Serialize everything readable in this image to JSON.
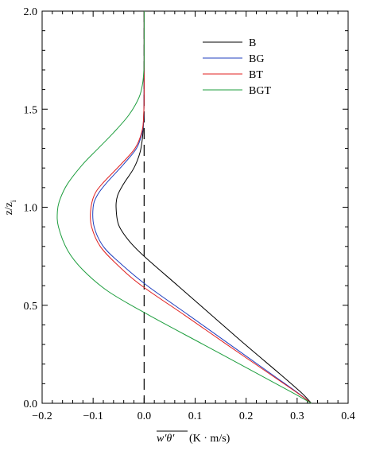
{
  "chart_data": {
    "type": "line",
    "xlim": [
      -0.2,
      0.4
    ],
    "ylim": [
      0.0,
      2.0
    ],
    "x_ticks": [
      -0.2,
      -0.1,
      0.0,
      0.1,
      0.2,
      0.3,
      0.4
    ],
    "x_tick_labels": [
      "−0.2",
      "−0.1",
      "0.0",
      "0.1",
      "0.2",
      "0.3",
      "0.4"
    ],
    "y_ticks": [
      0.0,
      0.5,
      1.0,
      1.5,
      2.0
    ],
    "y_tick_labels": [
      "0.0",
      "0.5",
      "1.0",
      "1.5",
      "2.0"
    ],
    "xlabel_symbol": "w′θ′",
    "xlabel_unit": "(K · m/s)",
    "ylabel_main": "z/z",
    "ylabel_sub": "i",
    "legend_position": "top-right",
    "zero_line": "dashed",
    "series": [
      {
        "name": "B",
        "color": "#000000",
        "points": [
          [
            0.328,
            0.0
          ],
          [
            0.31,
            0.05
          ],
          [
            0.266,
            0.15
          ],
          [
            0.198,
            0.3
          ],
          [
            0.132,
            0.45
          ],
          [
            0.066,
            0.6
          ],
          [
            0.0,
            0.75
          ],
          [
            -0.03,
            0.83
          ],
          [
            -0.05,
            0.91
          ],
          [
            -0.055,
            1.0
          ],
          [
            -0.052,
            1.06
          ],
          [
            -0.04,
            1.12
          ],
          [
            -0.02,
            1.2
          ],
          [
            -0.008,
            1.28
          ],
          [
            -0.003,
            1.36
          ],
          [
            -0.001,
            1.45
          ],
          [
            0.0,
            1.6
          ],
          [
            0.0,
            2.0
          ]
        ]
      },
      {
        "name": "BG",
        "color": "#1f3fbf",
        "points": [
          [
            0.328,
            0.0
          ],
          [
            0.303,
            0.05
          ],
          [
            0.249,
            0.15
          ],
          [
            0.168,
            0.3
          ],
          [
            0.087,
            0.45
          ],
          [
            0.006,
            0.6
          ],
          [
            -0.045,
            0.71
          ],
          [
            -0.08,
            0.8
          ],
          [
            -0.098,
            0.9
          ],
          [
            -0.1,
            1.0
          ],
          [
            -0.092,
            1.06
          ],
          [
            -0.075,
            1.12
          ],
          [
            -0.04,
            1.22
          ],
          [
            -0.015,
            1.3
          ],
          [
            -0.004,
            1.38
          ],
          [
            -0.001,
            1.45
          ],
          [
            0.0,
            1.6
          ],
          [
            0.0,
            2.0
          ]
        ]
      },
      {
        "name": "BT",
        "color": "#e0201f",
        "points": [
          [
            0.328,
            0.0
          ],
          [
            0.302,
            0.05
          ],
          [
            0.246,
            0.15
          ],
          [
            0.162,
            0.3
          ],
          [
            0.079,
            0.45
          ],
          [
            -0.005,
            0.6
          ],
          [
            -0.05,
            0.7
          ],
          [
            -0.086,
            0.8
          ],
          [
            -0.103,
            0.9
          ],
          [
            -0.105,
            0.98
          ],
          [
            -0.098,
            1.06
          ],
          [
            -0.082,
            1.12
          ],
          [
            -0.045,
            1.22
          ],
          [
            -0.018,
            1.3
          ],
          [
            -0.005,
            1.38
          ],
          [
            -0.001,
            1.46
          ],
          [
            0.0,
            1.6
          ],
          [
            0.0,
            2.0
          ]
        ]
      },
      {
        "name": "BGT",
        "color": "#1e9e3e",
        "points": [
          [
            0.328,
            0.0
          ],
          [
            0.294,
            0.05
          ],
          [
            0.223,
            0.15
          ],
          [
            0.116,
            0.3
          ],
          [
            0.009,
            0.45
          ],
          [
            -0.07,
            0.57
          ],
          [
            -0.12,
            0.68
          ],
          [
            -0.15,
            0.78
          ],
          [
            -0.168,
            0.9
          ],
          [
            -0.17,
            0.98
          ],
          [
            -0.165,
            1.04
          ],
          [
            -0.15,
            1.12
          ],
          [
            -0.12,
            1.22
          ],
          [
            -0.09,
            1.3
          ],
          [
            -0.06,
            1.38
          ],
          [
            -0.03,
            1.47
          ],
          [
            -0.01,
            1.56
          ],
          [
            -0.003,
            1.63
          ],
          [
            -0.0005,
            1.7
          ],
          [
            0.0,
            1.76
          ],
          [
            0.0,
            2.0
          ]
        ]
      }
    ]
  }
}
